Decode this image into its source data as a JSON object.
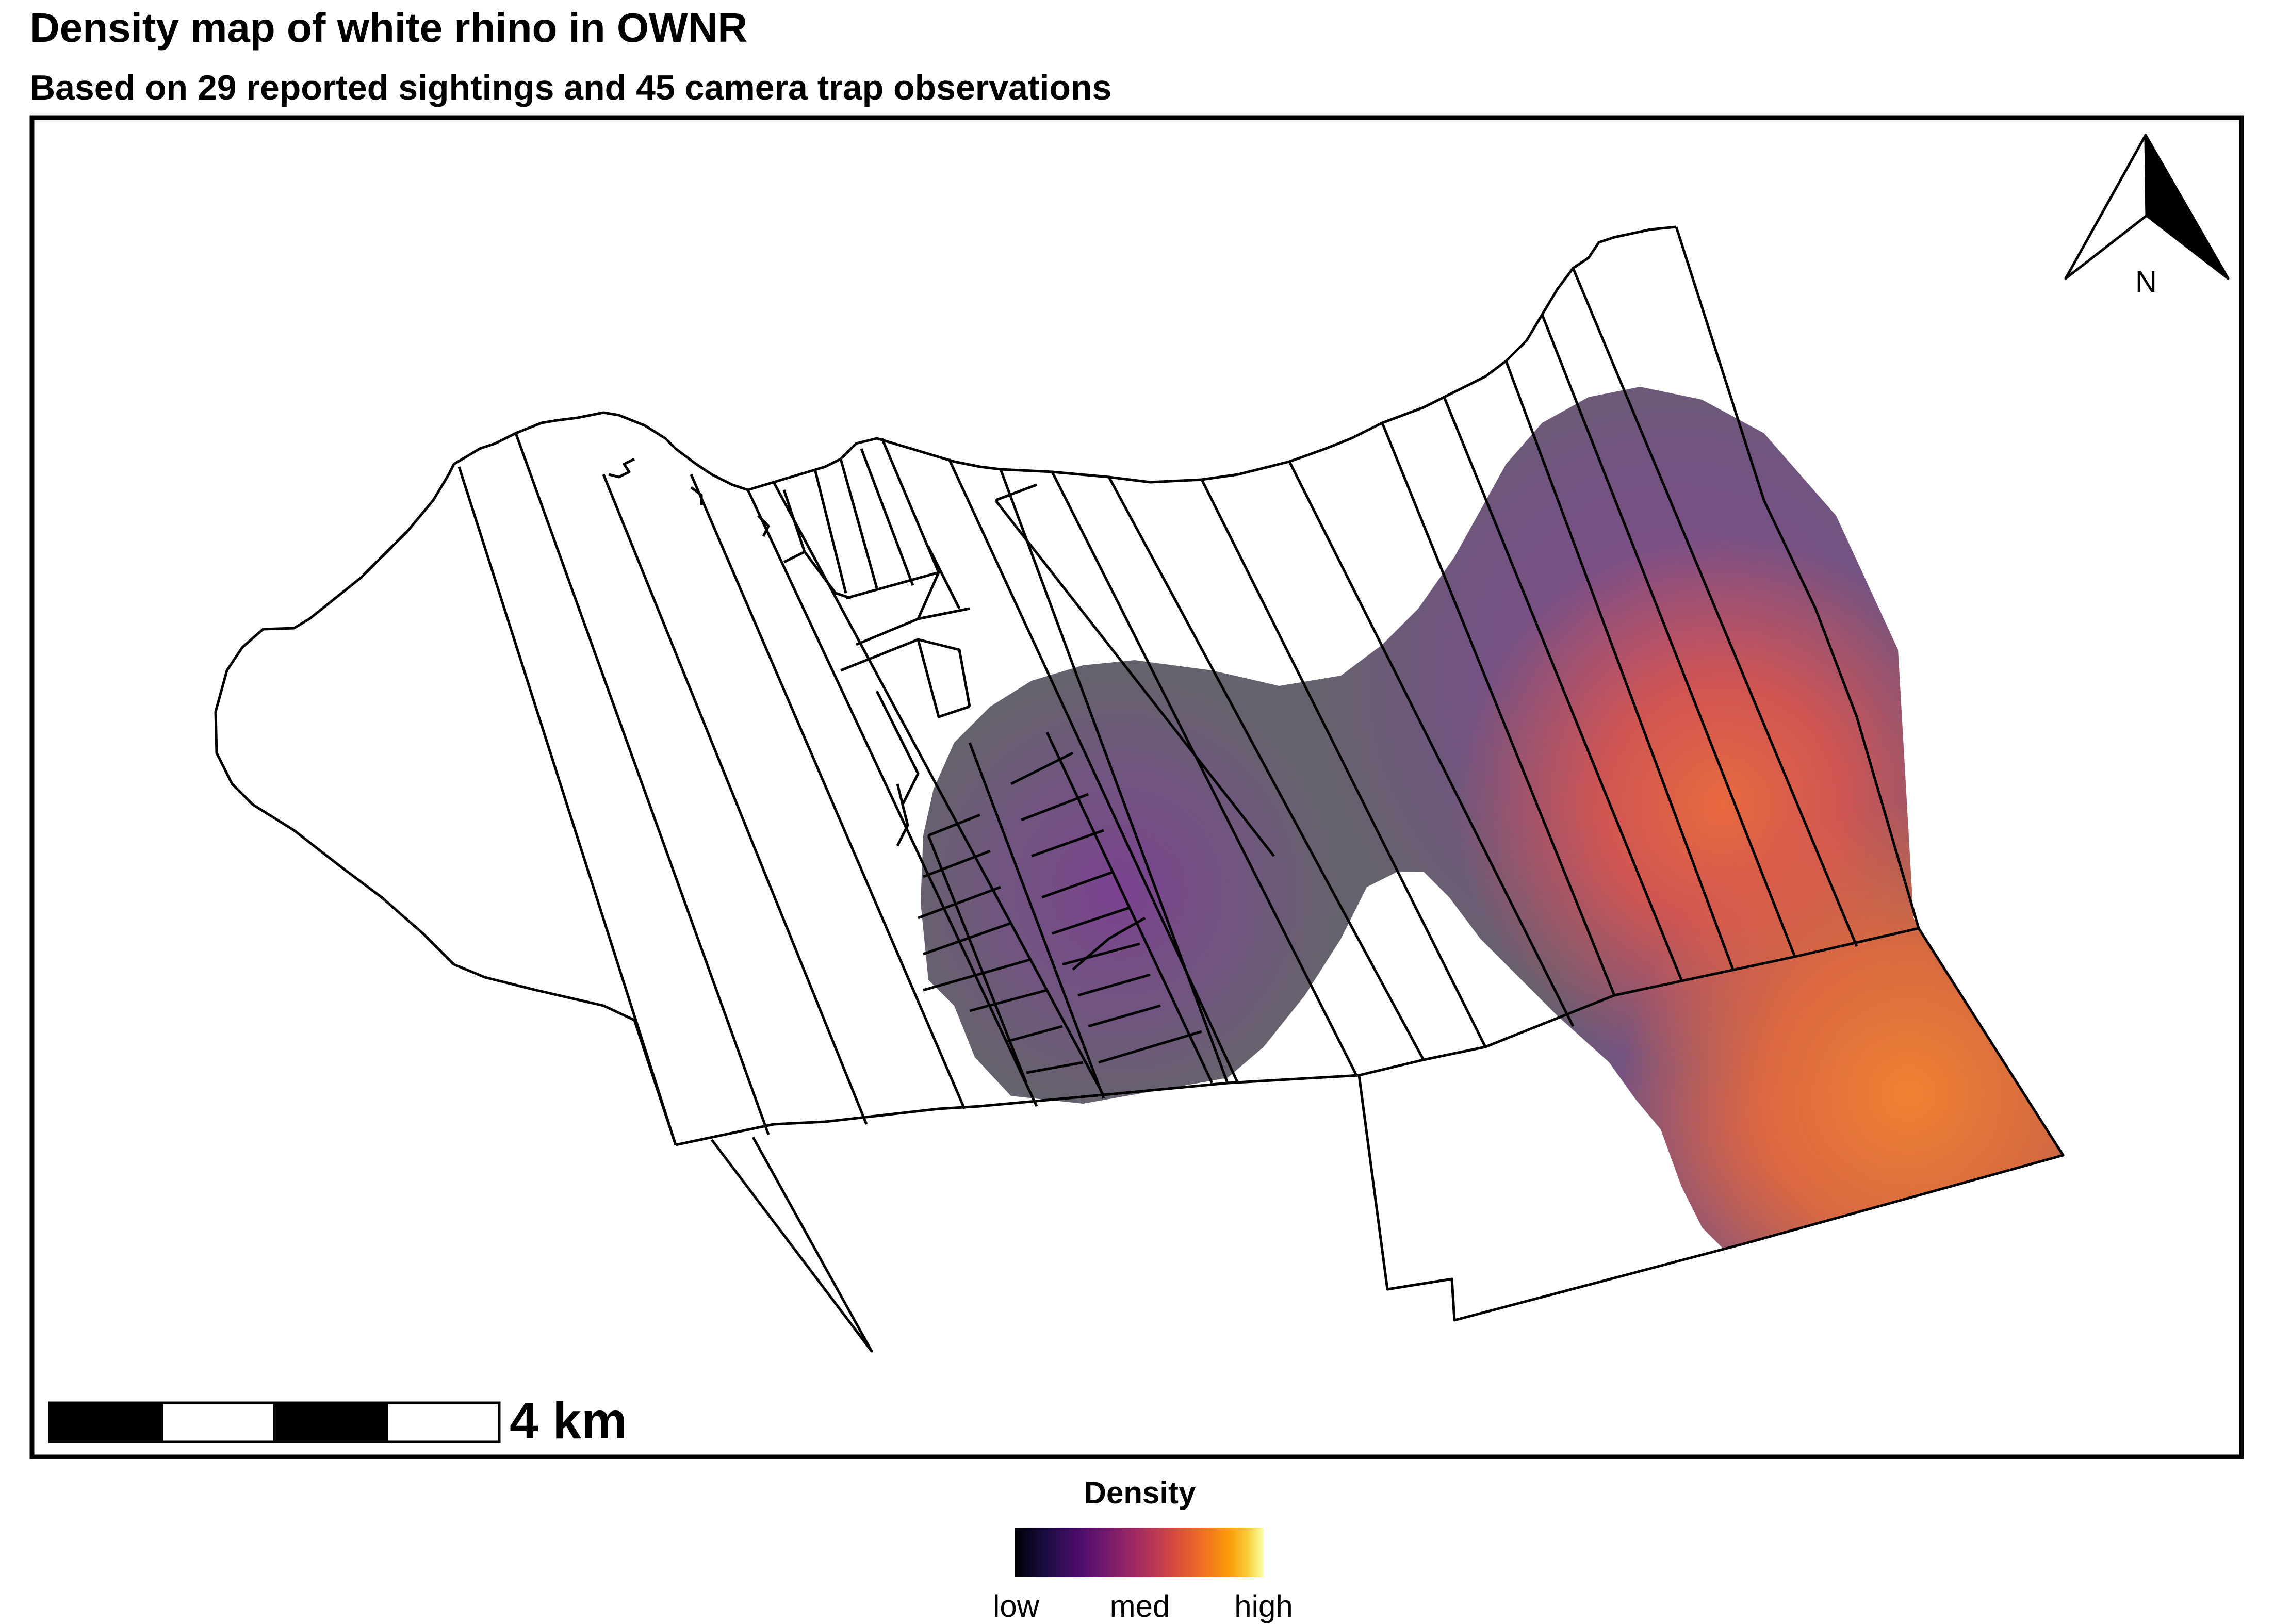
{
  "title": "Density map of white rhino in OWNR",
  "subtitle": "Based on 29 reported sightings and 45 camera trap observations",
  "north_arrow": {
    "label": "N",
    "icon": "north-arrow-icon"
  },
  "scale_bar": {
    "label": "4 km",
    "segments": 4
  },
  "legend": {
    "title": "Density",
    "ticks": [
      "low",
      "med",
      "high"
    ],
    "palette": [
      "#000004",
      "#1b0c41",
      "#4a0c6b",
      "#781c6d",
      "#a52c60",
      "#cf4446",
      "#ed6925",
      "#fb9b06",
      "#f7d13d",
      "#fcffa4"
    ]
  },
  "colors": {
    "density_base": "#66626d",
    "density_purple": "#7a4a8e",
    "density_red": "#dd5a4a",
    "density_orange": "#e97e35",
    "boundary": "#000000"
  }
}
